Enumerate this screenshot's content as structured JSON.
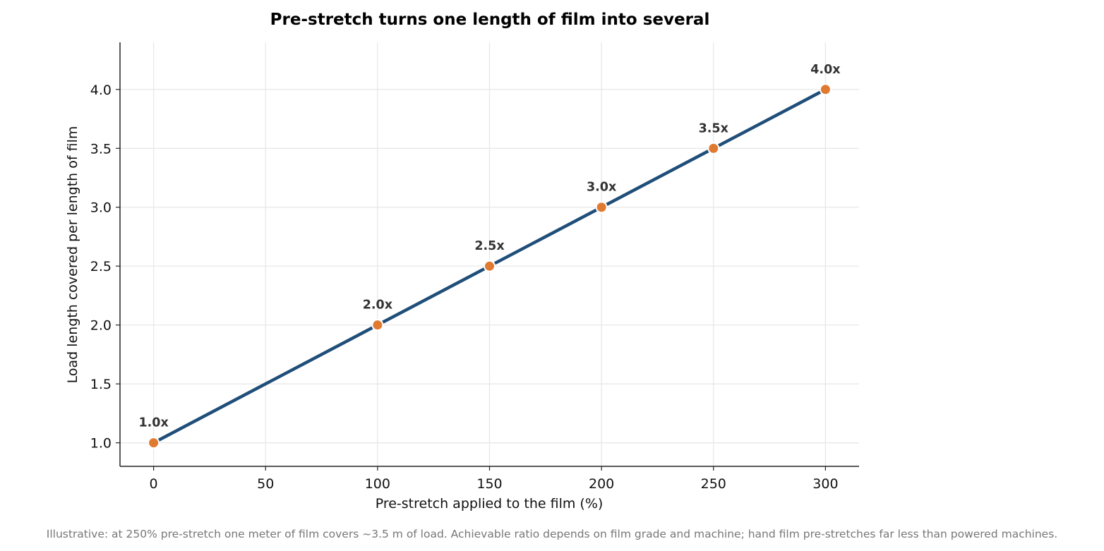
{
  "chart_data": {
    "type": "line",
    "title": "Pre-stretch turns one length of film into several",
    "xlabel": "Pre-stretch applied to the film (%)",
    "ylabel": "Load length covered per length of film",
    "x": [
      0,
      100,
      150,
      200,
      250,
      300
    ],
    "series": [
      {
        "values": [
          1.0,
          2.0,
          2.5,
          3.0,
          3.5,
          4.0
        ],
        "data_labels": [
          "1.0x",
          "2.0x",
          "2.5x",
          "3.0x",
          "3.5x",
          "4.0x"
        ]
      }
    ],
    "xticks": [
      0,
      50,
      100,
      150,
      200,
      250,
      300
    ],
    "yticks": [
      "1.0",
      "1.5",
      "2.0",
      "2.5",
      "3.0",
      "3.5",
      "4.0"
    ],
    "xlim": [
      -15,
      315
    ],
    "ylim": [
      0.8,
      4.4
    ],
    "grid": true,
    "colors": {
      "line": "#1f4e79",
      "marker": "#e07a30",
      "marker_edge": "#ffffff",
      "grid": "#e6e6e6",
      "axis": "#222222"
    },
    "footnote": "Illustrative: at 250% pre-stretch one meter of film covers ~3.5 m of load. Achievable ratio depends on film grade and machine; hand film pre-stretches far less than powered machines."
  }
}
